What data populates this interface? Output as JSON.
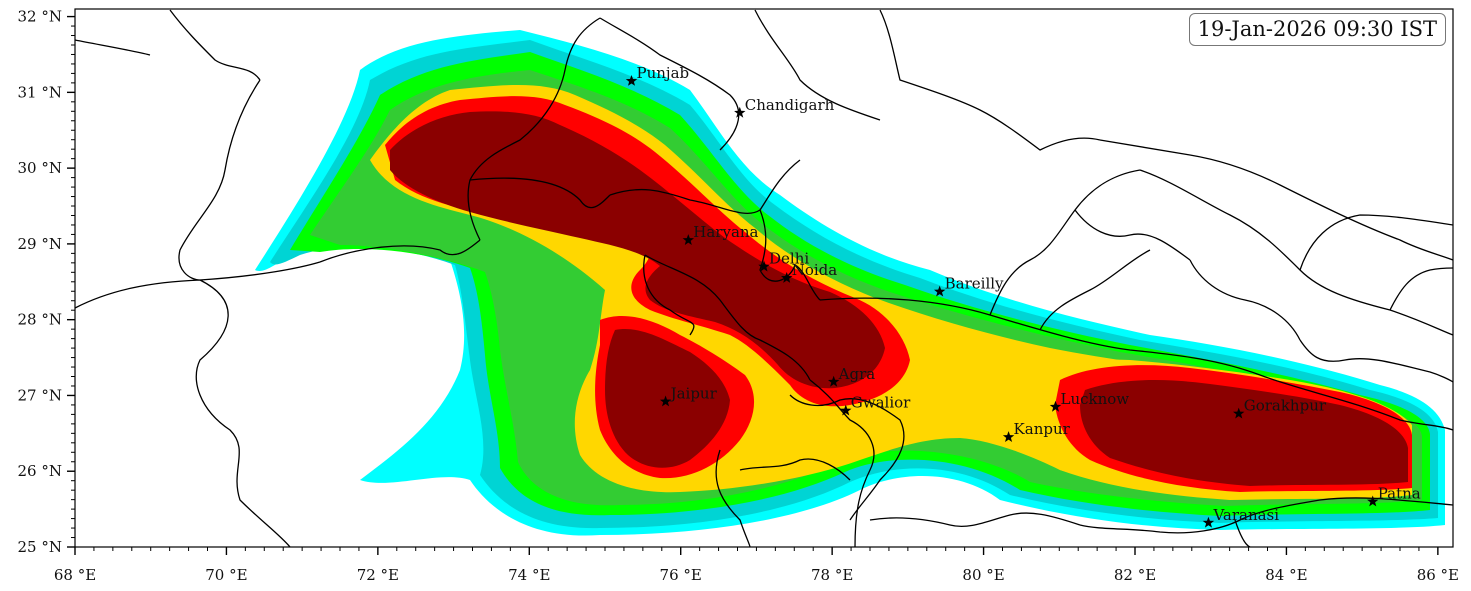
{
  "timestamp": "19-Jan-2026 09:30 IST",
  "axes": {
    "x_ticks": [
      {
        "value": 68,
        "label": "68 °E"
      },
      {
        "value": 70,
        "label": "70 °E"
      },
      {
        "value": 72,
        "label": "72 °E"
      },
      {
        "value": 74,
        "label": "74 °E"
      },
      {
        "value": 76,
        "label": "76 °E"
      },
      {
        "value": 78,
        "label": "78 °E"
      },
      {
        "value": 80,
        "label": "80 °E"
      },
      {
        "value": 82,
        "label": "82 °E"
      },
      {
        "value": 84,
        "label": "84 °E"
      },
      {
        "value": 86,
        "label": "86 °E"
      }
    ],
    "y_ticks": [
      {
        "value": 25,
        "label": "25 °N"
      },
      {
        "value": 26,
        "label": "26 °N"
      },
      {
        "value": 27,
        "label": "27 °N"
      },
      {
        "value": 28,
        "label": "28 °N"
      },
      {
        "value": 29,
        "label": "29 °N"
      },
      {
        "value": 30,
        "label": "30 °N"
      },
      {
        "value": 31,
        "label": "31 °N"
      },
      {
        "value": 32,
        "label": "32 °N"
      }
    ],
    "lon_range": [
      68,
      86.2
    ],
    "lat_range": [
      25,
      32.1
    ]
  },
  "cities": [
    {
      "name": "Punjab",
      "lon": 75.35,
      "lat": 31.15
    },
    {
      "name": "Chandigarh",
      "lon": 76.78,
      "lat": 30.73
    },
    {
      "name": "Haryana",
      "lon": 76.1,
      "lat": 29.05
    },
    {
      "name": "Delhi",
      "lon": 77.1,
      "lat": 28.7
    },
    {
      "name": "Noida",
      "lon": 77.4,
      "lat": 28.55
    },
    {
      "name": "Bareilly",
      "lon": 79.42,
      "lat": 28.37
    },
    {
      "name": "Agra",
      "lon": 78.02,
      "lat": 27.18
    },
    {
      "name": "Jaipur",
      "lon": 75.8,
      "lat": 26.92
    },
    {
      "name": "Gwalior",
      "lon": 78.18,
      "lat": 26.8
    },
    {
      "name": "Lucknow",
      "lon": 80.95,
      "lat": 26.85
    },
    {
      "name": "Kanpur",
      "lon": 80.33,
      "lat": 26.45
    },
    {
      "name": "Gorakhpur",
      "lon": 83.37,
      "lat": 26.76
    },
    {
      "name": "Varanasi",
      "lon": 82.97,
      "lat": 25.32
    },
    {
      "name": "Patna",
      "lon": 85.14,
      "lat": 25.6
    }
  ],
  "fog_colors": {
    "level1": "#00ffff",
    "level2": "#00d4d4",
    "level3": "#00ff00",
    "level4": "#33cc33",
    "level5": "#ffd700",
    "level6": "#ff0000",
    "level7": "#8b0000"
  }
}
